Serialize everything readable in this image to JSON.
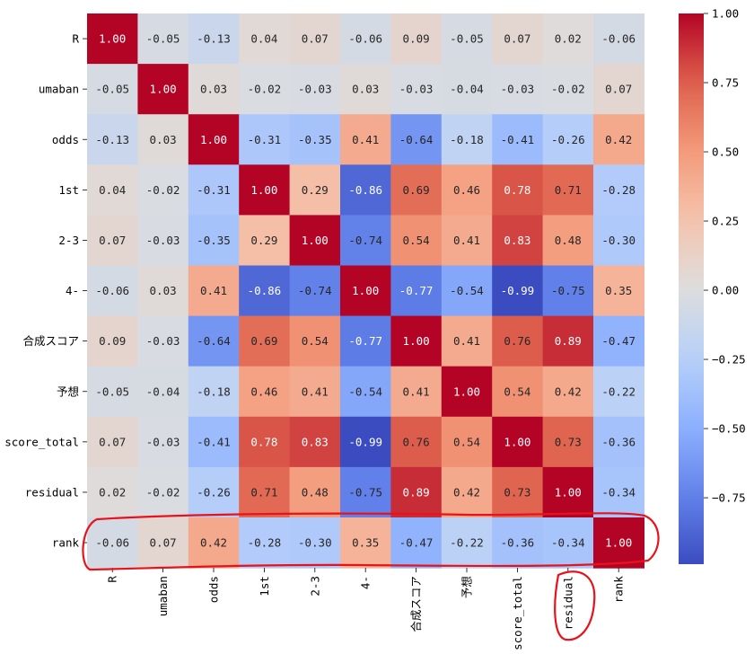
{
  "chart_data": {
    "type": "heatmap",
    "title": "",
    "xlabel": "",
    "ylabel": "",
    "labels": [
      "R",
      "umaban",
      "odds",
      "1st",
      "2-3",
      "4-",
      "合成スコア",
      "予想",
      "score_total",
      "residual",
      "rank"
    ],
    "matrix": [
      [
        1.0,
        -0.05,
        -0.13,
        0.04,
        0.07,
        -0.06,
        0.09,
        -0.05,
        0.07,
        0.02,
        -0.06
      ],
      [
        -0.05,
        1.0,
        0.03,
        -0.02,
        -0.03,
        0.03,
        -0.03,
        -0.04,
        -0.03,
        -0.02,
        0.07
      ],
      [
        -0.13,
        0.03,
        1.0,
        -0.31,
        -0.35,
        0.41,
        -0.64,
        -0.18,
        -0.41,
        -0.26,
        0.42
      ],
      [
        0.04,
        -0.02,
        -0.31,
        1.0,
        0.29,
        -0.86,
        0.69,
        0.46,
        0.78,
        0.71,
        -0.28
      ],
      [
        0.07,
        -0.03,
        -0.35,
        0.29,
        1.0,
        -0.74,
        0.54,
        0.41,
        0.83,
        0.48,
        -0.3
      ],
      [
        -0.06,
        0.03,
        0.41,
        -0.86,
        -0.74,
        1.0,
        -0.77,
        -0.54,
        -0.99,
        -0.75,
        0.35
      ],
      [
        0.09,
        -0.03,
        -0.64,
        0.69,
        0.54,
        -0.77,
        1.0,
        0.41,
        0.76,
        0.89,
        -0.47
      ],
      [
        -0.05,
        -0.04,
        -0.18,
        0.46,
        0.41,
        -0.54,
        0.41,
        1.0,
        0.54,
        0.42,
        -0.22
      ],
      [
        0.07,
        -0.03,
        -0.41,
        0.78,
        0.83,
        -0.99,
        0.76,
        0.54,
        1.0,
        0.73,
        -0.36
      ],
      [
        0.02,
        -0.02,
        -0.26,
        0.71,
        0.48,
        -0.75,
        0.89,
        0.42,
        0.73,
        1.0,
        -0.34
      ],
      [
        -0.06,
        0.07,
        0.42,
        -0.28,
        -0.3,
        0.35,
        -0.47,
        -0.22,
        -0.36,
        -0.34,
        1.0
      ]
    ],
    "colormap": "coolwarm",
    "vmin": -0.99,
    "vmax": 1.0,
    "colorbar_ticks": [
      "1.00",
      "0.75",
      "0.50",
      "0.25",
      "0.00",
      "−0.25",
      "−0.50",
      "−0.75"
    ],
    "colorbar_tick_values": [
      1.0,
      0.75,
      0.5,
      0.25,
      0.0,
      -0.25,
      -0.5,
      -0.75
    ],
    "annotations": [
      {
        "kind": "hand-drawn-outline",
        "target": "row",
        "label": "rank",
        "color": "#e8131a"
      },
      {
        "kind": "hand-drawn-outline",
        "target": "column",
        "label": "residual",
        "color": "#e8131a"
      }
    ]
  }
}
